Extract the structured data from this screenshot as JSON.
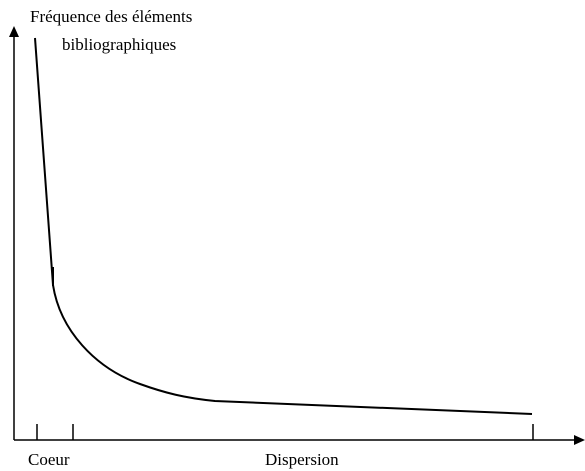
{
  "y_axis": {
    "label_line1": "Fréquence des éléments",
    "label_line2": "bibliographiques"
  },
  "x_axis": {
    "regions": [
      "Coeur",
      "Dispersion"
    ]
  }
}
